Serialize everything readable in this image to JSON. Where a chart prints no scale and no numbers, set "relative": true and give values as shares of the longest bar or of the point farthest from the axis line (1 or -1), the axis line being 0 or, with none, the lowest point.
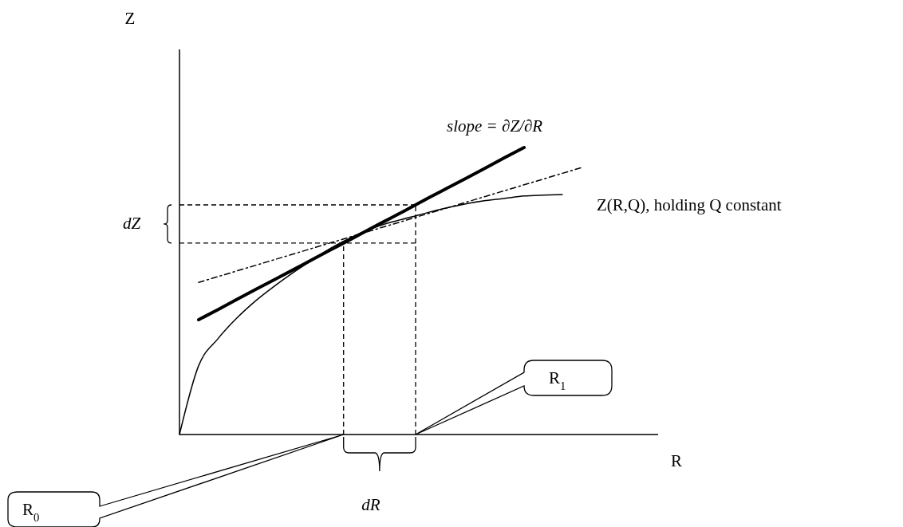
{
  "chart_data": {
    "type": "line",
    "relative": true,
    "xlabel": "R",
    "categories": [
      null,
      null,
      null,
      null,
      null,
      null,
      null,
      null,
      null,
      null,
      null,
      null,
      null,
      null,
      null,
      null,
      null,
      null,
      null,
      null,
      null,
      null,
      null,
      null,
      null,
      null
    ],
    "series": [
      {
        "name": "Z(R,Q), holding Q constant",
        "color": "#000000",
        "line_style": "solid",
        "values": [
          0,
          0.24,
          0.333,
          0.406,
          0.467,
          0.519,
          0.567,
          0.611,
          0.653,
          0.688,
          0.717,
          0.739,
          0.756,
          0.774,
          0.79,
          0.804,
          0.815,
          0.823,
          0.831,
          0.834,
          0.836,
          null,
          null,
          null,
          null,
          null
        ]
      },
      {
        "color": "#000000",
        "line_style": "solid",
        "values": [
          null,
          0.4,
          0.435,
          0.471,
          0.506,
          0.541,
          0.576,
          0.612,
          0.647,
          0.682,
          0.718,
          0.753,
          0.788,
          0.824,
          0.859,
          0.894,
          0.929,
          0.965,
          1.0,
          null,
          null,
          null,
          null,
          null,
          null,
          null
        ]
      },
      {
        "color": "#000000",
        "line_style": "dashed",
        "values": [
          null,
          0.53,
          0.55,
          0.57,
          0.59,
          0.61,
          0.63,
          0.65,
          0.67,
          0.69,
          0.71,
          0.73,
          0.75,
          0.77,
          0.79,
          0.81,
          0.83,
          0.85,
          0.87,
          0.89,
          0.91,
          0.93,
          null,
          null,
          null,
          null
        ]
      }
    ],
    "ref_lines": [
      {
        "axis": "y",
        "value": 0.667,
        "line_style": "dashed",
        "color": "#000000"
      },
      {
        "axis": "y",
        "value": 0.8,
        "line_style": "dashed",
        "color": "#000000"
      }
    ],
    "annotations": [
      "slope = ∂Z/∂R",
      "dZ",
      "dR",
      "R$_{0}$",
      "R$_{1}$",
      "Z"
    ],
    "marker": "none",
    "grid": false
  }
}
